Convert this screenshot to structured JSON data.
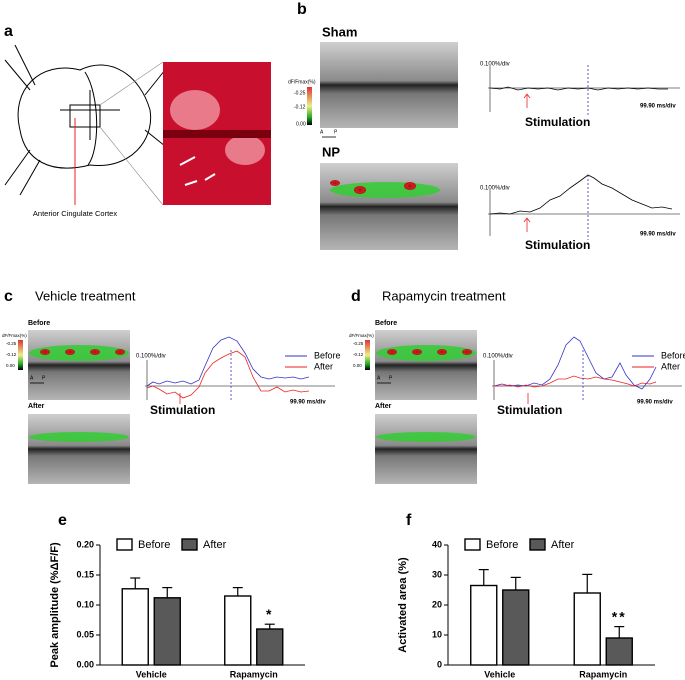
{
  "panels": {
    "a": {
      "label": "a",
      "annotation": "Anterior Cingulate Cortex"
    },
    "b": {
      "label": "b",
      "axis_a": "A",
      "axis_p": "P",
      "colorbar": {
        "title": "dF/Fmax(%)",
        "ticks": [
          "-0.25",
          "-0.12",
          "0.00"
        ]
      },
      "sham": {
        "title": "Sham",
        "scale_y": "0.100%/div",
        "scale_x": "99.90 ms/div",
        "stimulation": "Stimulation"
      },
      "np": {
        "title": "NP",
        "scale_y": "0.100%/div",
        "scale_x": "99.90 ms/div",
        "stimulation": "Stimulation"
      }
    },
    "c": {
      "label": "c",
      "title": "Vehicle treatment",
      "before": "Before",
      "after": "After",
      "axis_a": "A",
      "axis_p": "P",
      "colorbar": {
        "title": "dF/Fmax(%)",
        "ticks": [
          "-0.25",
          "-0.12",
          "0.00"
        ]
      },
      "scale_y": "0.100%/div",
      "scale_x": "99.90 ms/div",
      "stimulation": "Stimulation",
      "legend": [
        "Before",
        "After"
      ]
    },
    "d": {
      "label": "d",
      "title": "Rapamycin treatment",
      "before": "Before",
      "after": "After",
      "axis_a": "A",
      "axis_p": "P",
      "colorbar": {
        "title": "dF/Fmax(%)",
        "ticks": [
          "-0.25",
          "-0.12",
          "0.00"
        ]
      },
      "scale_y": "0.100%/div",
      "scale_x": "99.90 ms/div",
      "stimulation": "Stimulation",
      "legend": [
        "Before",
        "After"
      ]
    }
  },
  "chart_data": [
    {
      "type": "bar",
      "panel_label": "e",
      "y_label": "Peak amplitude (%ΔF/F)",
      "categories": [
        "Vehicle",
        "Rapamycin"
      ],
      "series": [
        {
          "name": "Before",
          "color": "#ffffff",
          "values": [
            0.127,
            0.115
          ],
          "errors": [
            0.018,
            0.014
          ]
        },
        {
          "name": "After",
          "color": "#595959",
          "values": [
            0.112,
            0.06
          ],
          "errors": [
            0.017,
            0.008
          ]
        }
      ],
      "ylim": [
        0,
        0.2
      ],
      "yticks": [
        {
          "value": 0,
          "label": "0.00"
        },
        {
          "value": 0.05,
          "label": "0.05"
        },
        {
          "value": 0.1,
          "label": "0.10"
        },
        {
          "value": 0.15,
          "label": "0.15"
        },
        {
          "value": 0.2,
          "label": "0.20"
        }
      ],
      "annotation": "*"
    },
    {
      "type": "bar",
      "panel_label": "f",
      "y_label": "Activated area (%)",
      "categories": [
        "Vehicle",
        "Rapamycin"
      ],
      "series": [
        {
          "name": "Before",
          "color": "#ffffff",
          "values": [
            26.5,
            24
          ],
          "errors": [
            5.3,
            6.2
          ]
        },
        {
          "name": "After",
          "color": "#595959",
          "values": [
            25,
            9
          ],
          "errors": [
            4.2,
            3.8
          ]
        }
      ],
      "ylim": [
        0,
        40
      ],
      "yticks": [
        0,
        10,
        20,
        30,
        40
      ],
      "annotation": "**"
    }
  ]
}
